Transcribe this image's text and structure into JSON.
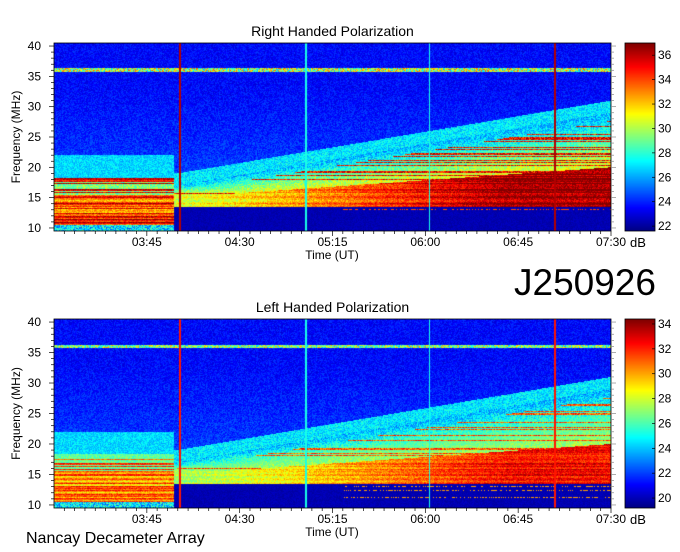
{
  "identifier": "J250926",
  "footer": "Nancay Decameter Array",
  "chart_data": [
    {
      "type": "heatmap",
      "title": "Right Handed Polarization",
      "xlabel": "Time (UT)",
      "ylabel": "Frequency (MHz)",
      "xlim": [
        "03:00",
        "07:30"
      ],
      "ylim": [
        9.5,
        40.5
      ],
      "xticks": [
        "03:45",
        "04:30",
        "05:15",
        "06:00",
        "06:45",
        "07:30"
      ],
      "yticks": [
        10,
        15,
        20,
        25,
        30,
        35,
        40
      ],
      "colorbar": {
        "label": "dB",
        "range": [
          21.6,
          37
        ],
        "ticks": [
          22,
          24,
          26,
          28,
          30,
          32,
          34,
          36
        ],
        "colormap": "jet"
      }
    },
    {
      "type": "heatmap",
      "title": "Left Handed Polarization",
      "xlabel": "Time (UT)",
      "ylabel": "Frequency (MHz)",
      "xlim": [
        "03:00",
        "07:30"
      ],
      "ylim": [
        9.5,
        40.5
      ],
      "xticks": [
        "03:45",
        "04:30",
        "05:15",
        "06:00",
        "06:45",
        "07:30"
      ],
      "yticks": [
        10,
        15,
        20,
        25,
        30,
        35,
        40
      ],
      "colorbar": {
        "label": "dB",
        "range": [
          19.2,
          34.4
        ],
        "ticks": [
          20,
          22,
          24,
          26,
          28,
          30,
          32,
          34
        ],
        "colormap": "jet"
      }
    }
  ]
}
